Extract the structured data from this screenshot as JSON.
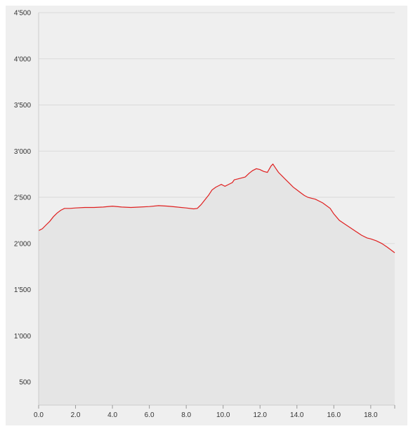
{
  "chart_data": {
    "type": "area",
    "title": "",
    "xlabel": "",
    "ylabel": "",
    "xlim": [
      0,
      19.3
    ],
    "ylim": [
      250,
      4500
    ],
    "x_ticks": [
      {
        "value": 0,
        "label": "0.0"
      },
      {
        "value": 2,
        "label": "2.0"
      },
      {
        "value": 4,
        "label": "4.0"
      },
      {
        "value": 6,
        "label": "6.0"
      },
      {
        "value": 8,
        "label": "8.0"
      },
      {
        "value": 10,
        "label": "10.0"
      },
      {
        "value": 12,
        "label": "12.0"
      },
      {
        "value": 14,
        "label": "14.0"
      },
      {
        "value": 16,
        "label": "16.0"
      },
      {
        "value": 18,
        "label": "18.0"
      }
    ],
    "y_ticks": [
      {
        "value": 500,
        "label": "500"
      },
      {
        "value": 1000,
        "label": "1'000"
      },
      {
        "value": 1500,
        "label": "1'500"
      },
      {
        "value": 2000,
        "label": "2'000"
      },
      {
        "value": 2500,
        "label": "2'500"
      },
      {
        "value": 3000,
        "label": "3'000"
      },
      {
        "value": 3500,
        "label": "3'500"
      },
      {
        "value": 4000,
        "label": "4'000"
      },
      {
        "value": 4500,
        "label": "4'500"
      }
    ],
    "grid": true,
    "legend": "none",
    "colors": {
      "line": "#e02020",
      "fill": "#e5e5e5",
      "plot_bg": "#efefef",
      "grid": "#dadada",
      "axis": "#cccccc"
    },
    "series": [
      {
        "x": [
          0.0,
          0.2,
          0.4,
          0.6,
          0.8,
          1.0,
          1.2,
          1.4,
          1.7,
          2.0,
          2.5,
          3.0,
          3.5,
          4.0,
          4.5,
          5.0,
          5.5,
          6.0,
          6.5,
          7.0,
          7.5,
          8.0,
          8.4,
          8.6,
          8.8,
          9.0,
          9.2,
          9.4,
          9.6,
          9.8,
          9.9,
          10.0,
          10.1,
          10.3,
          10.5,
          10.6,
          10.8,
          11.0,
          11.2,
          11.4,
          11.6,
          11.8,
          12.0,
          12.2,
          12.4,
          12.6,
          12.7,
          12.8,
          13.0,
          13.2,
          13.4,
          13.6,
          13.8,
          14.0,
          14.2,
          14.4,
          14.6,
          14.8,
          15.0,
          15.4,
          15.8,
          16.0,
          16.3,
          16.6,
          16.9,
          17.2,
          17.5,
          17.8,
          18.0,
          18.3,
          18.6,
          18.9,
          19.1,
          19.3
        ],
        "y": [
          2140,
          2160,
          2200,
          2240,
          2290,
          2330,
          2360,
          2380,
          2380,
          2385,
          2390,
          2390,
          2395,
          2405,
          2395,
          2390,
          2395,
          2400,
          2410,
          2405,
          2395,
          2385,
          2375,
          2380,
          2420,
          2470,
          2520,
          2580,
          2610,
          2630,
          2640,
          2630,
          2620,
          2640,
          2660,
          2690,
          2700,
          2710,
          2720,
          2760,
          2790,
          2810,
          2800,
          2780,
          2770,
          2840,
          2860,
          2830,
          2770,
          2730,
          2690,
          2650,
          2610,
          2580,
          2550,
          2520,
          2500,
          2490,
          2480,
          2440,
          2380,
          2320,
          2250,
          2210,
          2170,
          2130,
          2090,
          2060,
          2050,
          2030,
          2000,
          1960,
          1930,
          1900
        ]
      }
    ]
  }
}
